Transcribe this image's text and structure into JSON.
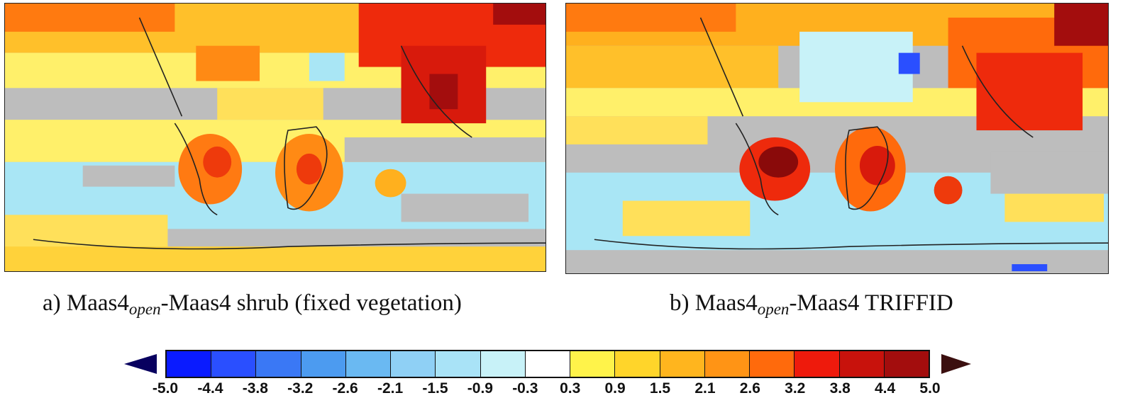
{
  "panels": [
    {
      "caption_prefix": "a) Maas4",
      "caption_sub": "open",
      "caption_suffix": "-Maas4 shrub (fixed vegetation)"
    },
    {
      "caption_prefix": "b) Maas4",
      "caption_sub": "open",
      "caption_suffix": "-Maas4 TRIFFID"
    }
  ],
  "colorbar": {
    "ticks": [
      "-5.0",
      "-4.4",
      "-3.8",
      "-3.2",
      "-2.6",
      "-2.1",
      "-1.5",
      "-0.9",
      "-0.3",
      "0.3",
      "0.9",
      "1.5",
      "2.1",
      "2.6",
      "3.2",
      "3.8",
      "4.4",
      "5.0"
    ],
    "colors": [
      "#0a1bff",
      "#2a4fff",
      "#3a78f5",
      "#4c9bf0",
      "#6ab9f2",
      "#8fd0f5",
      "#a9e3f7",
      "#c8f2f8",
      "#ffffff",
      "#fff34a",
      "#ffd52a",
      "#ffb51e",
      "#ff9415",
      "#ff6a0c",
      "#ee1a0c",
      "#c8120c",
      "#a30d0d",
      "#b00d0d"
    ],
    "arrow_low_color": "#08005f",
    "arrow_high_color": "#3b0f0f"
  }
}
